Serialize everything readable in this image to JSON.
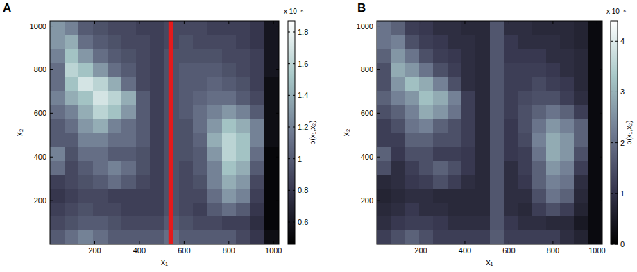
{
  "chart_data": [
    {
      "type": "heatmap",
      "panel_label": "A",
      "x_label": "x₁",
      "y_label": "x₂",
      "xlim": [
        0,
        1024
      ],
      "ylim": [
        0,
        1024
      ],
      "xticks": [
        200,
        400,
        600,
        800,
        1000
      ],
      "yticks": [
        200,
        400,
        600,
        800,
        1000
      ],
      "x_edges": [
        0,
        64,
        128,
        192,
        256,
        320,
        384,
        448,
        512,
        576,
        640,
        704,
        768,
        832,
        896,
        960,
        1024
      ],
      "y_edges": [
        0,
        64,
        128,
        192,
        256,
        320,
        384,
        448,
        512,
        576,
        640,
        704,
        768,
        832,
        896,
        960,
        1024
      ],
      "cells": [
        [
          1.0,
          1.1,
          1.2,
          1.1,
          1.0,
          1.0,
          1.0,
          1.0,
          1.1,
          1.0,
          1.0,
          1.0,
          1.0,
          0.9,
          0.8,
          0.55
        ],
        [
          0.9,
          0.95,
          1.0,
          1.0,
          0.95,
          0.9,
          0.9,
          0.9,
          1.0,
          0.95,
          0.9,
          0.9,
          0.85,
          0.85,
          0.75,
          0.5
        ],
        [
          0.85,
          0.9,
          0.95,
          0.9,
          0.9,
          0.85,
          0.85,
          0.85,
          0.95,
          0.9,
          0.85,
          1.0,
          1.1,
          1.0,
          0.8,
          0.5
        ],
        [
          0.8,
          0.85,
          0.9,
          0.9,
          0.85,
          0.85,
          0.85,
          0.85,
          0.95,
          0.9,
          0.9,
          1.1,
          1.3,
          1.2,
          0.85,
          0.5
        ],
        [
          0.85,
          0.9,
          0.95,
          1.0,
          1.1,
          1.0,
          0.9,
          0.85,
          0.95,
          0.9,
          0.95,
          1.2,
          1.4,
          1.3,
          0.9,
          0.5
        ],
        [
          1.1,
          0.9,
          1.0,
          1.1,
          1.2,
          1.1,
          0.95,
          0.85,
          0.95,
          0.9,
          1.0,
          1.2,
          1.5,
          1.4,
          1.0,
          0.5
        ],
        [
          1.2,
          0.95,
          1.1,
          1.1,
          1.0,
          1.0,
          0.95,
          0.85,
          0.95,
          0.95,
          1.0,
          1.3,
          1.6,
          1.5,
          1.1,
          0.5
        ],
        [
          1.0,
          1.0,
          1.2,
          1.2,
          1.1,
          1.1,
          1.0,
          0.85,
          0.95,
          0.95,
          1.05,
          1.4,
          1.6,
          1.5,
          1.2,
          0.55
        ],
        [
          1.0,
          1.1,
          1.3,
          1.4,
          1.2,
          1.1,
          1.0,
          0.85,
          0.95,
          0.95,
          1.1,
          1.3,
          1.5,
          1.4,
          1.2,
          0.55
        ],
        [
          1.1,
          1.2,
          1.4,
          1.6,
          1.5,
          1.3,
          1.0,
          0.85,
          0.95,
          1.0,
          1.1,
          1.2,
          1.3,
          1.2,
          1.0,
          0.55
        ],
        [
          1.2,
          1.4,
          1.5,
          1.7,
          1.6,
          1.4,
          1.0,
          0.85,
          0.95,
          1.0,
          1.05,
          1.1,
          1.1,
          1.0,
          0.9,
          0.55
        ],
        [
          1.1,
          1.5,
          1.7,
          1.6,
          1.4,
          1.1,
          0.9,
          0.85,
          0.95,
          1.0,
          1.0,
          1.05,
          1.0,
          0.95,
          0.85,
          0.55
        ],
        [
          1.1,
          1.6,
          1.5,
          1.3,
          1.1,
          1.0,
          0.9,
          0.85,
          0.95,
          1.0,
          1.0,
          1.0,
          0.95,
          0.9,
          0.85,
          0.6
        ],
        [
          1.2,
          1.5,
          1.3,
          1.1,
          1.0,
          0.95,
          0.9,
          0.85,
          0.95,
          0.95,
          0.95,
          0.95,
          0.9,
          0.9,
          0.85,
          0.6
        ],
        [
          1.3,
          1.4,
          1.1,
          1.0,
          0.95,
          0.9,
          0.9,
          0.85,
          0.9,
          0.95,
          0.9,
          0.9,
          0.9,
          0.85,
          0.8,
          0.6
        ],
        [
          1.3,
          1.2,
          1.0,
          0.95,
          0.9,
          0.9,
          0.85,
          0.85,
          0.9,
          0.9,
          0.9,
          0.85,
          0.85,
          0.85,
          0.8,
          0.6
        ]
      ],
      "band": {
        "x": [
          530,
          552
        ],
        "color": "#e41a1c"
      },
      "colorbar": {
        "label": "p(x₁,x₂)",
        "multiplier": "x 10⁻⁶",
        "range": [
          0.46,
          1.87
        ],
        "ticks": [
          0.6,
          0.8,
          1,
          1.2,
          1.4,
          1.6,
          1.8
        ],
        "colors": [
          "#000000",
          "#383850",
          "#6f7a91",
          "#a6c7c7",
          "#ffffff"
        ]
      }
    },
    {
      "type": "heatmap",
      "panel_label": "B",
      "x_label": "x₁",
      "y_label": "x₂",
      "xlim": [
        0,
        1024
      ],
      "ylim": [
        0,
        1024
      ],
      "xticks": [
        200,
        400,
        600,
        800,
        1000
      ],
      "yticks": [
        200,
        400,
        600,
        800,
        1000
      ],
      "x_edges": [
        0,
        64,
        128,
        192,
        256,
        320,
        384,
        448,
        512,
        576,
        640,
        704,
        768,
        832,
        896,
        960,
        1024
      ],
      "y_edges": [
        0,
        64,
        128,
        192,
        256,
        320,
        384,
        448,
        512,
        576,
        640,
        704,
        768,
        832,
        896,
        960,
        1024
      ],
      "cells": [
        [
          1.2,
          1.5,
          1.8,
          1.5,
          1.2,
          1.2,
          1.2,
          1.2,
          1.7,
          1.2,
          1.2,
          1.2,
          1.2,
          0.9,
          0.7,
          0.2
        ],
        [
          0.9,
          1.1,
          1.2,
          1.2,
          1.1,
          0.9,
          0.9,
          0.9,
          1.6,
          1.1,
          0.9,
          0.9,
          0.8,
          0.8,
          0.5,
          0.2
        ],
        [
          0.8,
          0.9,
          1.1,
          0.9,
          0.9,
          0.8,
          0.8,
          0.8,
          1.6,
          0.9,
          0.8,
          1.2,
          1.5,
          1.2,
          0.7,
          0.2
        ],
        [
          0.7,
          0.8,
          0.9,
          0.9,
          0.8,
          0.8,
          0.8,
          0.8,
          1.6,
          0.9,
          0.9,
          1.5,
          2.1,
          1.8,
          0.8,
          0.2
        ],
        [
          0.8,
          0.9,
          1.1,
          1.2,
          1.5,
          1.2,
          0.9,
          0.8,
          1.6,
          0.9,
          1.1,
          1.8,
          2.3,
          2.1,
          0.9,
          0.2
        ],
        [
          1.5,
          0.9,
          1.2,
          1.5,
          1.8,
          1.5,
          1.1,
          0.8,
          1.6,
          0.9,
          1.2,
          1.8,
          2.6,
          2.3,
          1.2,
          0.2
        ],
        [
          1.8,
          1.1,
          1.5,
          1.5,
          1.2,
          1.2,
          1.1,
          0.8,
          1.6,
          1.1,
          1.2,
          2.1,
          2.9,
          2.6,
          1.5,
          0.2
        ],
        [
          1.2,
          1.2,
          1.8,
          1.8,
          1.5,
          1.5,
          1.2,
          0.8,
          1.6,
          1.1,
          1.4,
          2.3,
          2.9,
          2.6,
          1.8,
          0.2
        ],
        [
          1.2,
          1.5,
          2.1,
          2.3,
          1.8,
          1.5,
          1.2,
          0.8,
          1.6,
          1.1,
          1.5,
          2.1,
          2.6,
          2.3,
          1.8,
          0.2
        ],
        [
          1.5,
          1.8,
          2.3,
          2.9,
          2.6,
          2.1,
          1.2,
          0.8,
          1.6,
          1.2,
          1.5,
          1.8,
          2.1,
          1.8,
          1.2,
          0.2
        ],
        [
          1.8,
          2.3,
          2.6,
          3.2,
          2.9,
          2.3,
          1.2,
          0.8,
          1.6,
          1.2,
          1.4,
          1.5,
          1.5,
          1.2,
          0.9,
          0.2
        ],
        [
          1.5,
          2.6,
          3.2,
          2.9,
          2.3,
          1.5,
          0.9,
          0.8,
          1.6,
          1.2,
          1.2,
          1.4,
          1.2,
          1.1,
          0.8,
          0.2
        ],
        [
          1.5,
          2.9,
          2.6,
          2.1,
          1.5,
          1.2,
          0.9,
          0.8,
          1.6,
          1.2,
          1.2,
          1.2,
          1.1,
          0.9,
          0.8,
          0.2
        ],
        [
          1.8,
          2.6,
          2.1,
          1.5,
          1.2,
          1.1,
          0.9,
          0.8,
          1.6,
          1.1,
          1.1,
          1.1,
          0.9,
          0.9,
          0.8,
          0.2
        ],
        [
          2.1,
          2.3,
          1.5,
          1.2,
          1.1,
          0.9,
          0.9,
          0.8,
          1.6,
          1.1,
          0.9,
          0.9,
          0.9,
          0.8,
          0.7,
          0.2
        ],
        [
          2.1,
          1.8,
          1.2,
          1.1,
          0.9,
          0.9,
          0.8,
          0.8,
          1.6,
          0.9,
          0.9,
          0.8,
          0.8,
          0.8,
          0.7,
          0.2
        ]
      ],
      "colorbar": {
        "label": "p(x₁,x₂)",
        "multiplier": "x 10⁻⁶",
        "range": [
          0,
          4.4
        ],
        "ticks": [
          0,
          1,
          2,
          3,
          4
        ],
        "colors": [
          "#000000",
          "#383850",
          "#6f7a91",
          "#a6c7c7",
          "#ffffff"
        ]
      }
    }
  ]
}
